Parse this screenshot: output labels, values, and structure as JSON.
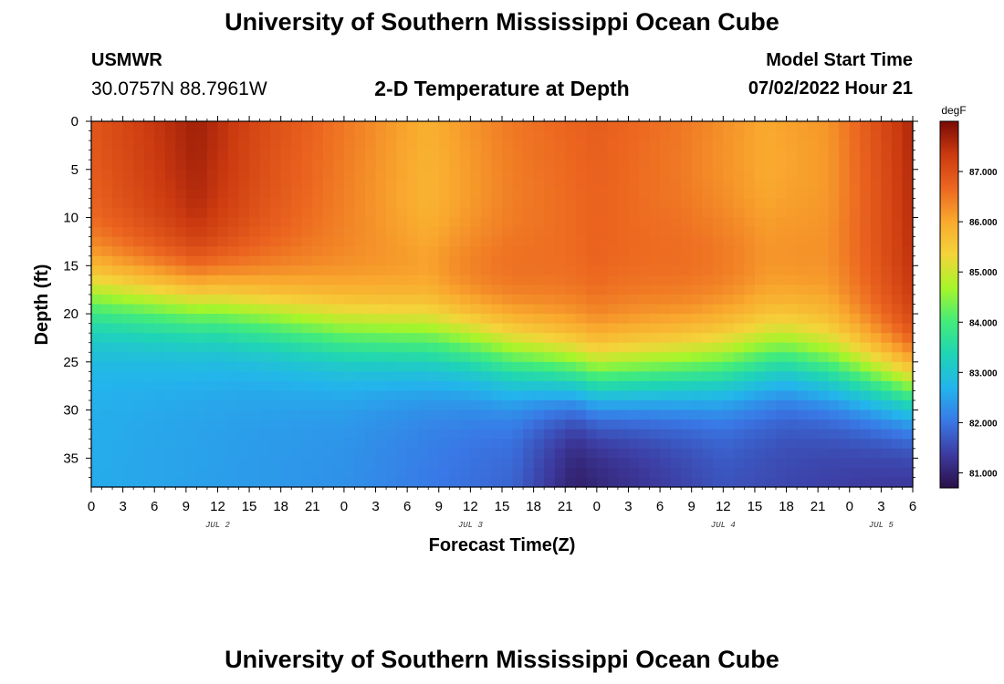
{
  "header": {
    "title": "University of Southern Mississippi Ocean Cube",
    "station_id": "USMWR",
    "station_coords": "30.0757N  88.7961W",
    "subtitle": "2-D Temperature at Depth",
    "model_label": "Model Start Time",
    "model_time": "07/02/2022 Hour 21"
  },
  "footer": {
    "title": "University of Southern Mississippi Ocean Cube"
  },
  "chart_data": {
    "type": "heatmap",
    "title": "2-D Temperature at Depth",
    "xlabel": "Forecast Time(Z)",
    "ylabel": "Depth (ft)",
    "x_ticks": [
      "0",
      "3",
      "6",
      "9",
      "12",
      "15",
      "18",
      "21",
      "0",
      "3",
      "6",
      "9",
      "12",
      "15",
      "18",
      "21",
      "0",
      "3",
      "6",
      "9",
      "12",
      "15",
      "18",
      "21",
      "0",
      "3",
      "6"
    ],
    "x_range_hours": [
      0,
      78
    ],
    "date_labels": [
      {
        "label": "JUL 2",
        "hour": 12
      },
      {
        "label": "JUL 3",
        "hour": 36
      },
      {
        "label": "JUL 4",
        "hour": 60
      },
      {
        "label": "JUL 5",
        "hour": 75
      }
    ],
    "y_ticks": [
      0,
      5,
      10,
      15,
      20,
      25,
      30,
      35
    ],
    "y_range": [
      0,
      38
    ],
    "colorbar": {
      "unit": "degF",
      "range": [
        80.7,
        88.0
      ],
      "ticks": [
        "87.000",
        "86.000",
        "85.000",
        "84.000",
        "83.000",
        "82.000",
        "81.000"
      ],
      "tick_values": [
        87,
        86,
        85,
        84,
        83,
        82,
        81
      ],
      "colors": [
        "#2a0f47",
        "#3d3ba0",
        "#3978e6",
        "#23b4ec",
        "#1fd4b6",
        "#44ec79",
        "#a6f52a",
        "#f4d43a",
        "#f9a92e",
        "#ec6620",
        "#cc3a10",
        "#7a0a04"
      ]
    },
    "surface_temp_by_hour": [
      {
        "hour": 0,
        "value": 86.9
      },
      {
        "hour": 5,
        "value": 87.3
      },
      {
        "hour": 10,
        "value": 87.7
      },
      {
        "hour": 16,
        "value": 87.1
      },
      {
        "hour": 24,
        "value": 86.5
      },
      {
        "hour": 32,
        "value": 85.9
      },
      {
        "hour": 40,
        "value": 86.5
      },
      {
        "hour": 48,
        "value": 86.8
      },
      {
        "hour": 56,
        "value": 86.5
      },
      {
        "hour": 64,
        "value": 86.0
      },
      {
        "hour": 70,
        "value": 86.2
      },
      {
        "hour": 78,
        "value": 87.6
      }
    ],
    "thermocline_depth_by_hour": [
      {
        "hour": 0,
        "depth_ft": 18
      },
      {
        "hour": 12,
        "depth_ft": 19
      },
      {
        "hour": 24,
        "depth_ft": 22
      },
      {
        "hour": 36,
        "depth_ft": 24
      },
      {
        "hour": 48,
        "depth_ft": 27
      },
      {
        "hour": 60,
        "depth_ft": 26
      },
      {
        "hour": 66,
        "depth_ft": 25
      },
      {
        "hour": 78,
        "depth_ft": 28
      }
    ],
    "bottom_temp_by_hour": [
      {
        "hour": 0,
        "value": 82.6
      },
      {
        "hour": 24,
        "value": 82.3
      },
      {
        "hour": 40,
        "value": 81.8
      },
      {
        "hour": 46,
        "value": 80.9
      },
      {
        "hour": 60,
        "value": 81.6
      },
      {
        "hour": 78,
        "value": 81.2
      }
    ]
  }
}
